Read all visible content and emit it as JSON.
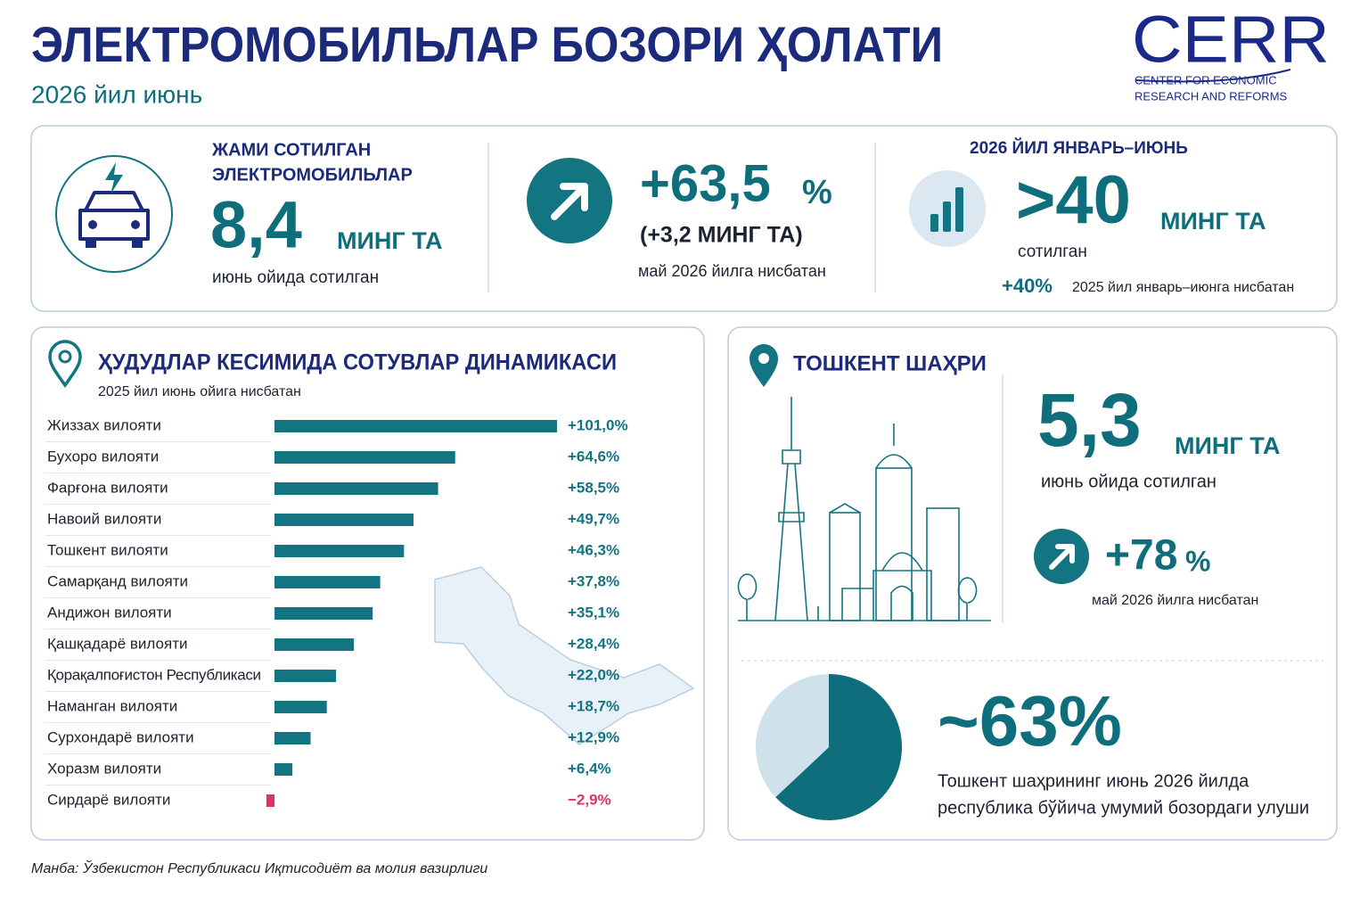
{
  "header": {
    "title": "ЭЛЕКТРОМОБИЛЬЛАР БОЗОРИ ҲОЛАТИ",
    "subtitle": "2026 йил июнь"
  },
  "logo": {
    "name": "CERR",
    "line1": "CENTER FOR ECONOMIC",
    "line2": "RESEARCH AND REFORMS"
  },
  "kpis": {
    "total": {
      "label_lines": [
        "ЖАМИ СОТИЛГАН",
        "ЭЛЕКТРОМОБИЛЬЛАР"
      ],
      "value": "8,4",
      "unit": "МИНГ ТА",
      "note": "июнь ойида сотилган"
    },
    "growth": {
      "value": "+63,5",
      "unit": "%",
      "sub": "(+3,2 МИНГ ТА)",
      "note": "май 2026 йилга нисбатан"
    },
    "ytd": {
      "label": "2026 ЙИЛ ЯНВАРЬ–ИЮНЬ",
      "value": ">40",
      "unit": "МИНГ ТА",
      "note": "сотилган",
      "change": "+40%",
      "change_note": "2025 йил январь–июнга нисбатан"
    }
  },
  "tashkent": {
    "title": "ТОШКЕНТ ШАҲРИ",
    "value": "5,3",
    "unit": "МИНГ ТА",
    "note": "июнь ойида сотилган",
    "growth": "+78",
    "growth_unit": "%",
    "growth_note": "май 2026 йилга нисбатан"
  },
  "source": "Манба: Ўзбекистон Республикаси Иқтисодиёт ва молия вазирлиги",
  "chart_data": [
    {
      "type": "bar",
      "orientation": "horizontal",
      "title": "ҲУДУДЛАР КЕСИМИДА СОТУВЛАР ДИНАМИКАСИ",
      "subtitle": "2025 йил июнь ойига нисбатан",
      "categories": [
        "Жиззах вилояти",
        "Бухоро вилояти",
        "Фарғона вилояти",
        "Навоий вилояти",
        "Тошкент вилояти",
        "Самарқанд вилояти",
        "Андижон вилояти",
        "Қашқадарё вилояти",
        "Қорақалпоғистон Республикаси",
        "Наманган вилояти",
        "Сурхондарё вилояти",
        "Хоразм вилояти",
        "Сирдарё вилояти"
      ],
      "values": [
        101.0,
        64.6,
        58.5,
        49.7,
        46.3,
        37.8,
        35.1,
        28.4,
        22.0,
        18.7,
        12.9,
        6.4,
        -2.9
      ],
      "value_labels": [
        "+101,0%",
        "+64,6%",
        "+58,5%",
        "+49,7%",
        "+46,3%",
        "+37,8%",
        "+35,1%",
        "+28,4%",
        "+22,0%",
        "+18,7%",
        "+12,9%",
        "+6,4%",
        "−2,9%"
      ],
      "color": "#137482",
      "negative_color": "#e0345e"
    },
    {
      "type": "pie",
      "values": [
        63,
        37
      ],
      "value_labels": [
        "~63%",
        null
      ],
      "colors": [
        "#0e6e7c",
        "#cfe1eb"
      ],
      "caption": [
        "Тошкент шаҳрининг июнь 2026 йилда",
        "республика бўйича умумий бозордаги улуши"
      ]
    }
  ]
}
